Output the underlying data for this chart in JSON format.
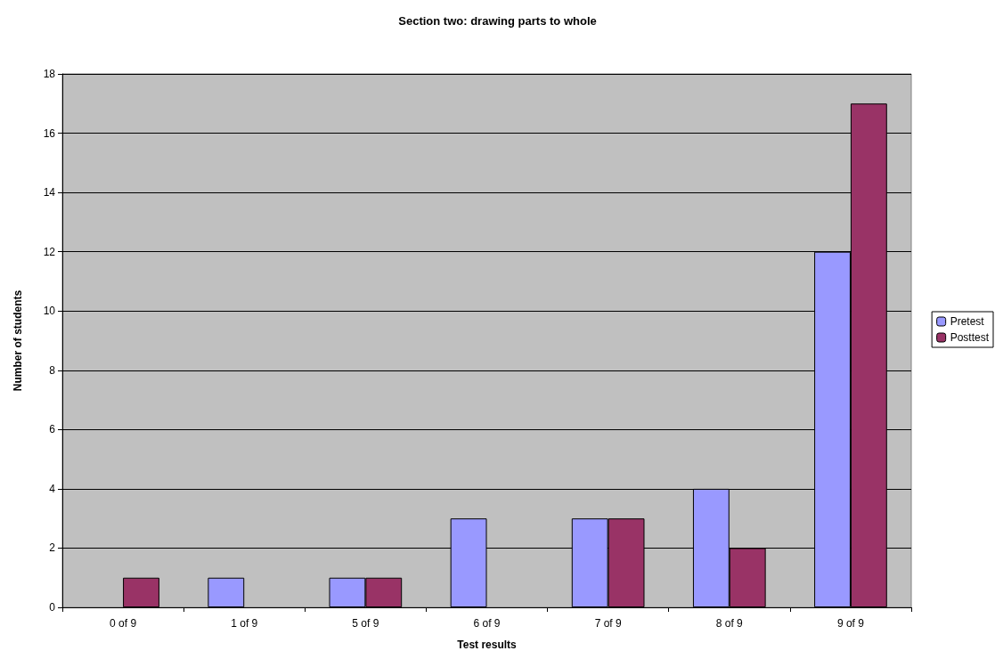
{
  "chart_data": {
    "type": "bar",
    "title": "Section two: drawing parts to whole",
    "xlabel": "Test results",
    "ylabel": "Number of students",
    "categories": [
      "0 of 9",
      "1 of 9",
      "5 of 9",
      "6 of 9",
      "7 of 9",
      "8 of 9",
      "9 of 9"
    ],
    "series": [
      {
        "name": "Pretest",
        "color": "#9999ff",
        "values": [
          0,
          1,
          1,
          3,
          3,
          4,
          12
        ]
      },
      {
        "name": "Posttest",
        "color": "#993366",
        "values": [
          1,
          0,
          1,
          0,
          3,
          2,
          17
        ]
      }
    ],
    "ylim": [
      0,
      18
    ],
    "yticks": [
      0,
      2,
      4,
      6,
      8,
      10,
      12,
      14,
      16,
      18
    ],
    "grid": "y",
    "legend": "right"
  }
}
